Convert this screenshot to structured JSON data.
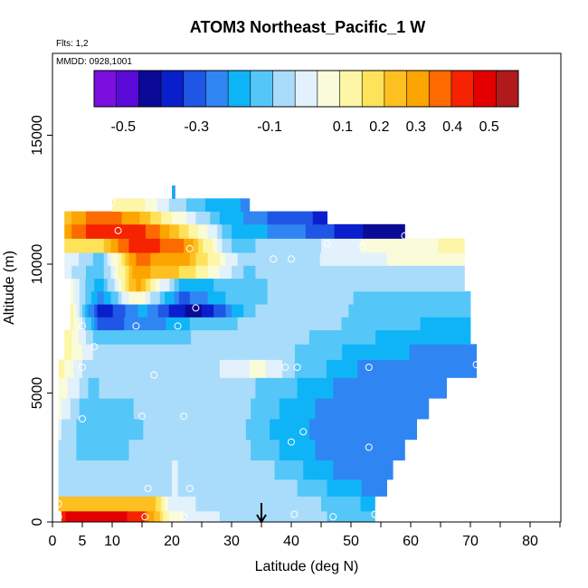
{
  "chart_data": {
    "type": "heatmap",
    "title": "ATOM3 Northeast_Pacific_1 W",
    "subtitle_lines": [
      "Flts: 1,2",
      "MMDD: 0928,1001"
    ],
    "xlabel": "Latitude (deg N)",
    "ylabel": "Altitude (m)",
    "xlim": [
      0,
      85
    ],
    "ylim": [
      0,
      18000
    ],
    "x_ticks": [
      0,
      5,
      10,
      20,
      30,
      40,
      50,
      60,
      70,
      80
    ],
    "y_ticks": [
      0,
      5000,
      10000,
      15000
    ],
    "colorbar": {
      "tick_labels": [
        "-0.5",
        "-0.3",
        "-0.1",
        "0.1",
        "0.2",
        "0.3",
        "0.4",
        "0.5"
      ],
      "tick_values": [
        -0.5,
        -0.3,
        -0.1,
        0.1,
        0.2,
        0.3,
        0.4,
        0.5
      ],
      "range": [
        -0.58,
        0.58
      ],
      "colors": [
        "#7a0fe0",
        "#5a0ad8",
        "#0a0a96",
        "#0a1fcc",
        "#1f56e6",
        "#2f86f2",
        "#0fb4f7",
        "#55c6f8",
        "#a9dcfa",
        "#e2f1fb",
        "#f9fbd9",
        "#fcf6a6",
        "#fde25a",
        "#fdc020",
        "#fca400",
        "#fc6a00",
        "#f52300",
        "#e40000",
        "#b01a1a"
      ]
    },
    "arrow_x": 35,
    "rows": [
      {
        "alt": 150,
        "cells": [
          [
            1.5,
            0.45
          ],
          [
            5,
            0.5
          ],
          [
            10,
            0.5
          ],
          [
            15,
            0.42
          ],
          [
            20,
            0.05
          ],
          [
            30,
            -0.05
          ],
          [
            40,
            -0.08
          ],
          [
            50,
            -0.1
          ],
          [
            54,
            -0.12
          ]
        ]
      },
      {
        "alt": 700,
        "cells": [
          [
            1,
            0.25
          ],
          [
            10,
            0.25
          ],
          [
            17,
            0.25
          ],
          [
            20,
            -0.02
          ],
          [
            30,
            -0.05
          ],
          [
            40,
            -0.06
          ],
          [
            50,
            -0.12
          ],
          [
            54,
            -0.2
          ]
        ]
      },
      {
        "alt": 1300,
        "cells": [
          [
            1,
            -0.05
          ],
          [
            10,
            -0.08
          ],
          [
            20,
            -0.03
          ],
          [
            30,
            -0.04
          ],
          [
            40,
            -0.08
          ],
          [
            50,
            -0.2
          ],
          [
            56,
            -0.25
          ]
        ]
      },
      {
        "alt": 2000,
        "cells": [
          [
            1,
            -0.06
          ],
          [
            8,
            -0.08
          ],
          [
            14,
            -0.06
          ],
          [
            20,
            -0.03
          ],
          [
            30,
            -0.04
          ],
          [
            38,
            -0.1
          ],
          [
            48,
            -0.22
          ],
          [
            57,
            -0.25
          ]
        ]
      },
      {
        "alt": 2800,
        "cells": [
          [
            1,
            -0.05
          ],
          [
            6,
            -0.12
          ],
          [
            12,
            -0.1
          ],
          [
            20,
            -0.04
          ],
          [
            30,
            -0.05
          ],
          [
            38,
            -0.15
          ],
          [
            48,
            -0.25
          ],
          [
            59,
            -0.25
          ]
        ]
      },
      {
        "alt": 3600,
        "cells": [
          [
            1,
            -0.02
          ],
          [
            6,
            -0.15
          ],
          [
            12,
            -0.12
          ],
          [
            20,
            -0.05
          ],
          [
            30,
            -0.06
          ],
          [
            38,
            -0.18
          ],
          [
            48,
            -0.25
          ],
          [
            61,
            -0.25
          ]
        ]
      },
      {
        "alt": 4400,
        "cells": [
          [
            1,
            0.05
          ],
          [
            6,
            -0.15
          ],
          [
            12,
            -0.1
          ],
          [
            20,
            -0.05
          ],
          [
            30,
            -0.06
          ],
          [
            38,
            -0.15
          ],
          [
            48,
            -0.25
          ],
          [
            63,
            -0.25
          ]
        ]
      },
      {
        "alt": 5200,
        "cells": [
          [
            1,
            0.1
          ],
          [
            6,
            -0.1
          ],
          [
            12,
            -0.07
          ],
          [
            20,
            -0.05
          ],
          [
            30,
            -0.06
          ],
          [
            40,
            -0.14
          ],
          [
            50,
            -0.25
          ],
          [
            66,
            -0.25
          ]
        ]
      },
      {
        "alt": 6000,
        "cells": [
          [
            1,
            0.12
          ],
          [
            6,
            -0.06
          ],
          [
            14,
            -0.05
          ],
          [
            25,
            -0.06
          ],
          [
            35,
            0.05
          ],
          [
            42,
            -0.12
          ],
          [
            55,
            -0.25
          ],
          [
            71,
            -0.25
          ]
        ]
      },
      {
        "alt": 6600,
        "cells": [
          [
            2,
            0.12
          ],
          [
            8,
            -0.06
          ],
          [
            16,
            -0.05
          ],
          [
            25,
            -0.06
          ],
          [
            35,
            -0.05
          ],
          [
            42,
            -0.1
          ],
          [
            55,
            -0.2
          ],
          [
            71,
            -0.25
          ]
        ]
      },
      {
        "alt": 7200,
        "cells": [
          [
            2,
            0.15
          ],
          [
            8,
            -0.15
          ],
          [
            16,
            -0.15
          ],
          [
            25,
            -0.08
          ],
          [
            35,
            -0.06
          ],
          [
            45,
            -0.1
          ],
          [
            58,
            -0.18
          ],
          [
            70,
            -0.2
          ]
        ]
      },
      {
        "alt": 7700,
        "cells": [
          [
            3,
            0.15
          ],
          [
            8,
            -0.3
          ],
          [
            16,
            -0.25
          ],
          [
            26,
            -0.12
          ],
          [
            36,
            -0.06
          ],
          [
            46,
            -0.08
          ],
          [
            58,
            -0.15
          ],
          [
            70,
            -0.16
          ]
        ]
      },
      {
        "alt": 8200,
        "cells": [
          [
            3,
            0.12
          ],
          [
            8,
            -0.4
          ],
          [
            15,
            -0.2
          ],
          [
            24,
            -0.45
          ],
          [
            34,
            -0.08
          ],
          [
            46,
            -0.08
          ],
          [
            58,
            -0.12
          ],
          [
            70,
            -0.12
          ]
        ]
      },
      {
        "alt": 8700,
        "cells": [
          [
            3,
            0.08
          ],
          [
            8,
            -0.25
          ],
          [
            14,
            0.1
          ],
          [
            22,
            -0.3
          ],
          [
            32,
            -0.1
          ],
          [
            42,
            -0.08
          ],
          [
            56,
            -0.1
          ],
          [
            70,
            -0.1
          ]
        ]
      },
      {
        "alt": 9200,
        "cells": [
          [
            3,
            0.05
          ],
          [
            8,
            -0.22
          ],
          [
            14,
            0.3
          ],
          [
            22,
            -0.2
          ],
          [
            32,
            -0.1
          ],
          [
            42,
            -0.08
          ],
          [
            56,
            -0.08
          ],
          [
            69,
            -0.08
          ]
        ]
      },
      {
        "alt": 9700,
        "cells": [
          [
            2,
            0.0
          ],
          [
            8,
            -0.15
          ],
          [
            14,
            0.3
          ],
          [
            22,
            0.2
          ],
          [
            32,
            -0.1
          ],
          [
            42,
            -0.06
          ],
          [
            56,
            -0.05
          ],
          [
            69,
            -0.05
          ]
        ]
      },
      {
        "alt": 10200,
        "cells": [
          [
            2,
            0.02
          ],
          [
            8,
            -0.12
          ],
          [
            14,
            0.35
          ],
          [
            22,
            0.3
          ],
          [
            32,
            -0.06
          ],
          [
            42,
            -0.05
          ],
          [
            56,
            0.03
          ],
          [
            69,
            0.05
          ]
        ]
      },
      {
        "alt": 10700,
        "cells": [
          [
            2,
            0.2
          ],
          [
            8,
            0.2
          ],
          [
            14,
            0.45
          ],
          [
            22,
            0.35
          ],
          [
            30,
            -0.1
          ],
          [
            40,
            -0.08
          ],
          [
            50,
            0.02
          ],
          [
            58,
            0.08
          ],
          [
            69,
            0.1
          ]
        ]
      },
      {
        "alt": 11300,
        "cells": [
          [
            2,
            0.3
          ],
          [
            8,
            0.45
          ],
          [
            14,
            0.45
          ],
          [
            22,
            0.2
          ],
          [
            30,
            -0.15
          ],
          [
            40,
            -0.25
          ],
          [
            52,
            -0.4
          ],
          [
            59,
            -0.45
          ]
        ]
      },
      {
        "alt": 11800,
        "cells": [
          [
            2,
            0.25
          ],
          [
            8,
            0.4
          ],
          [
            14,
            0.3
          ],
          [
            20,
            0.1
          ],
          [
            28,
            -0.15
          ],
          [
            38,
            -0.3
          ],
          [
            46,
            -0.35
          ]
        ]
      },
      {
        "alt": 12300,
        "cells": [
          [
            10,
            0.15
          ],
          [
            15,
            0.1
          ],
          [
            20,
            -0.05
          ],
          [
            28,
            -0.2
          ],
          [
            33,
            -0.22
          ]
        ]
      },
      {
        "alt": 12800,
        "cells": [
          [
            20,
            -0.2
          ],
          [
            20.5,
            -0.22
          ]
        ]
      }
    ],
    "points": [
      [
        1,
        200
      ],
      [
        15.5,
        200
      ],
      [
        22,
        200
      ],
      [
        40.5,
        300
      ],
      [
        47,
        200
      ],
      [
        54,
        300
      ],
      [
        1,
        700
      ],
      [
        16,
        1300
      ],
      [
        23,
        1300
      ],
      [
        40,
        3100
      ],
      [
        42,
        3500
      ],
      [
        53,
        2900
      ],
      [
        5,
        4000
      ],
      [
        15,
        4100
      ],
      [
        22,
        4100
      ],
      [
        5,
        6000
      ],
      [
        17,
        5700
      ],
      [
        39,
        6000
      ],
      [
        41,
        6000
      ],
      [
        53,
        6000
      ],
      [
        71,
        6100
      ],
      [
        7,
        6800
      ],
      [
        5,
        7600
      ],
      [
        14,
        7600
      ],
      [
        21,
        7600
      ],
      [
        24,
        8300
      ],
      [
        37,
        10200
      ],
      [
        40,
        10200
      ],
      [
        23,
        10600
      ],
      [
        46,
        10800
      ],
      [
        52,
        10700
      ],
      [
        11,
        11300
      ],
      [
        59,
        11100
      ],
      [
        10,
        12400
      ]
    ]
  }
}
